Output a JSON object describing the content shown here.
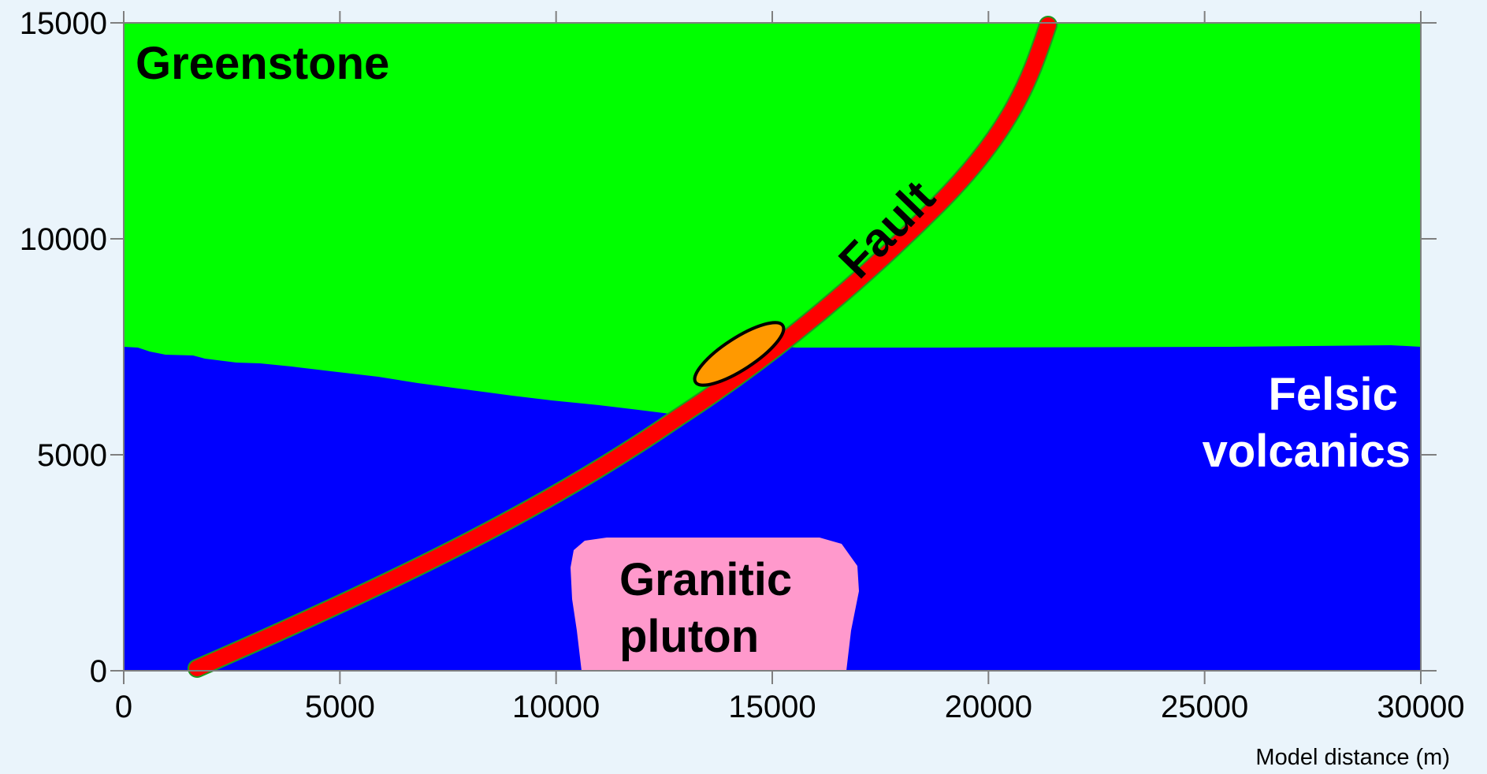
{
  "x_axis": {
    "ticks": [
      0,
      5000,
      10000,
      15000,
      20000,
      25000,
      30000
    ],
    "range": [
      0,
      30000
    ],
    "label": "Model distance (m)"
  },
  "y_axis": {
    "ticks": [
      0,
      5000,
      10000,
      15000
    ],
    "range": [
      0,
      15000
    ]
  },
  "units": [
    {
      "key": "greenstone",
      "lines": [
        "Greenstone"
      ],
      "color": "#00ff00"
    },
    {
      "key": "felsic",
      "lines": [
        "Felsic",
        "volcanics"
      ],
      "color": "#0000ff"
    },
    {
      "key": "pluton",
      "lines": [
        "Granitic",
        "pluton"
      ],
      "color": "#ff99cc"
    }
  ],
  "fault": {
    "label": "Fault",
    "color": "#ff0000"
  },
  "ore_body": {
    "color": "#ff9900"
  }
}
